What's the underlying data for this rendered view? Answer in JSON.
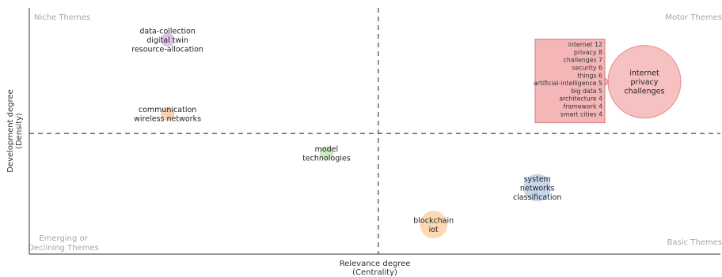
{
  "chart_data": {
    "type": "scatter",
    "subtype": "thematic-map-bubble",
    "xlabel": [
      "Relevance degree",
      "(Centrality)"
    ],
    "ylabel": [
      "Development degree",
      "(Density)"
    ],
    "quadrants": {
      "top_left": [
        "Niche Themes"
      ],
      "top_right": [
        "Motor Themes"
      ],
      "bottom_left": [
        "Emerging or",
        "Declining Themes"
      ],
      "bottom_right": [
        "Basic Themes"
      ]
    },
    "xlim": [
      0,
      1
    ],
    "ylim": [
      0,
      1
    ],
    "x_divider": 0.505,
    "y_divider": 0.49,
    "grid": false,
    "clusters": [
      {
        "labels": [
          "data-collection",
          "digital twin",
          "resource-allocation"
        ],
        "x": 0.2,
        "y": 0.87,
        "size": 1,
        "color": "#d9b8e8"
      },
      {
        "labels": [
          "communication",
          "wireless networks"
        ],
        "x": 0.2,
        "y": 0.57,
        "size": 1,
        "color": "#f5c9a8"
      },
      {
        "labels": [
          "model",
          "technologies"
        ],
        "x": 0.43,
        "y": 0.41,
        "size": 1,
        "color": "#c2e3bb"
      },
      {
        "labels": [
          "internet",
          "privacy",
          "challenges"
        ],
        "x": 0.89,
        "y": 0.7,
        "size": 28,
        "color": "#f4b6b6",
        "stroke": "#e98a8a"
      },
      {
        "labels": [
          "system",
          "networks",
          "classification"
        ],
        "x": 0.735,
        "y": 0.27,
        "size": 4,
        "color": "#bcd0ea"
      },
      {
        "labels": [
          "blockchain",
          "iot"
        ],
        "x": 0.585,
        "y": 0.12,
        "size": 4,
        "color": "#fbd1a6"
      }
    ],
    "tooltip": {
      "color": "#f4b6b6",
      "border": "#d27a7a",
      "items": [
        "internet 12",
        "privacy 8",
        "challenges 7",
        "security 6",
        "things 6",
        "artificial-intelligence 5",
        "big data 5",
        "architecture 4",
        "framework 4",
        "smart cities 4"
      ]
    }
  }
}
